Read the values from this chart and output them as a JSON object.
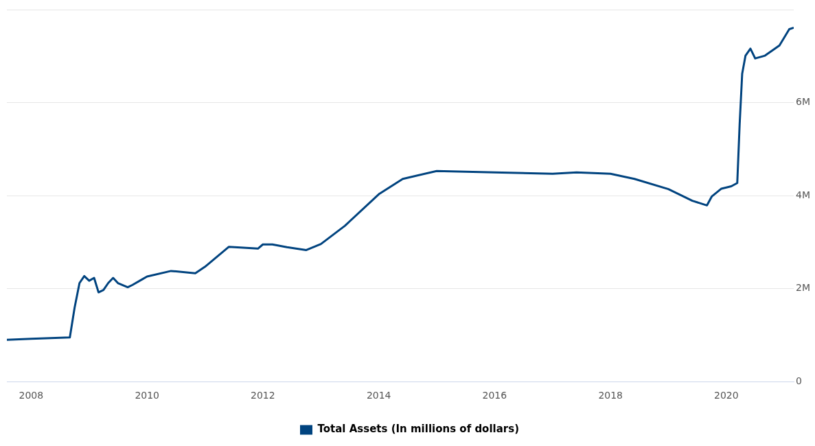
{
  "chart_data": {
    "type": "line",
    "x": [
      "2007-08",
      "2008-01",
      "2008-09",
      "2008-10",
      "2008-11",
      "2008-12",
      "2009-01",
      "2009-02",
      "2009-03",
      "2009-04",
      "2009-05",
      "2009-06",
      "2009-07",
      "2009-09",
      "2009-10",
      "2009-12",
      "2010-01",
      "2010-06",
      "2010-11",
      "2011-01",
      "2011-06",
      "2011-12",
      "2012-01",
      "2012-03",
      "2012-06",
      "2012-10",
      "2013-01",
      "2013-06",
      "2014-01",
      "2014-06",
      "2015-01",
      "2016-01",
      "2017-01",
      "2017-06",
      "2018-01",
      "2018-06",
      "2019-01",
      "2019-06",
      "2019-09",
      "2019-10",
      "2019-12",
      "2020-02",
      "2020-03-10",
      "2020-03-25",
      "2020-04-10",
      "2020-05",
      "2020-06",
      "2020-07",
      "2020-09",
      "2020-12",
      "2021-02",
      "2021-03"
    ],
    "series": [
      {
        "name": "Total Assets (In millions of dollars)",
        "color": "#00437f",
        "values": [
          900000,
          920000,
          950000,
          1590000,
          2120000,
          2270000,
          2170000,
          2230000,
          1920000,
          1970000,
          2120000,
          2230000,
          2120000,
          2030000,
          2080000,
          2200000,
          2260000,
          2380000,
          2330000,
          2470000,
          2900000,
          2860000,
          2950000,
          2950000,
          2890000,
          2830000,
          2960000,
          3350000,
          4030000,
          4360000,
          4530000,
          4500000,
          4470000,
          4500000,
          4470000,
          4360000,
          4140000,
          3890000,
          3790000,
          3980000,
          4150000,
          4200000,
          4270000,
          5530000,
          6620000,
          7010000,
          7160000,
          6950000,
          7010000,
          7230000,
          7580000,
          7610000
        ]
      }
    ],
    "xlim": [
      "2007-08",
      "2021-03"
    ],
    "xticks": [
      {
        "value": "2008",
        "label": "2008"
      },
      {
        "value": "2010",
        "label": "2010"
      },
      {
        "value": "2012",
        "label": "2012"
      },
      {
        "value": "2014",
        "label": "2014"
      },
      {
        "value": "2016",
        "label": "2016"
      },
      {
        "value": "2018",
        "label": "2018"
      },
      {
        "value": "2020",
        "label": "2020"
      }
    ],
    "ylim": [
      0,
      8000000
    ],
    "yticks": [
      0,
      {
        "value": 2000000,
        "label": "2M"
      },
      {
        "value": 4000000,
        "label": "4M"
      },
      {
        "value": 6000000,
        "label": "6M"
      },
      {
        "value": 8000000,
        "label": null
      }
    ],
    "grid": "y",
    "legend": "bottom",
    "marker": "none",
    "line_style": "solid"
  }
}
